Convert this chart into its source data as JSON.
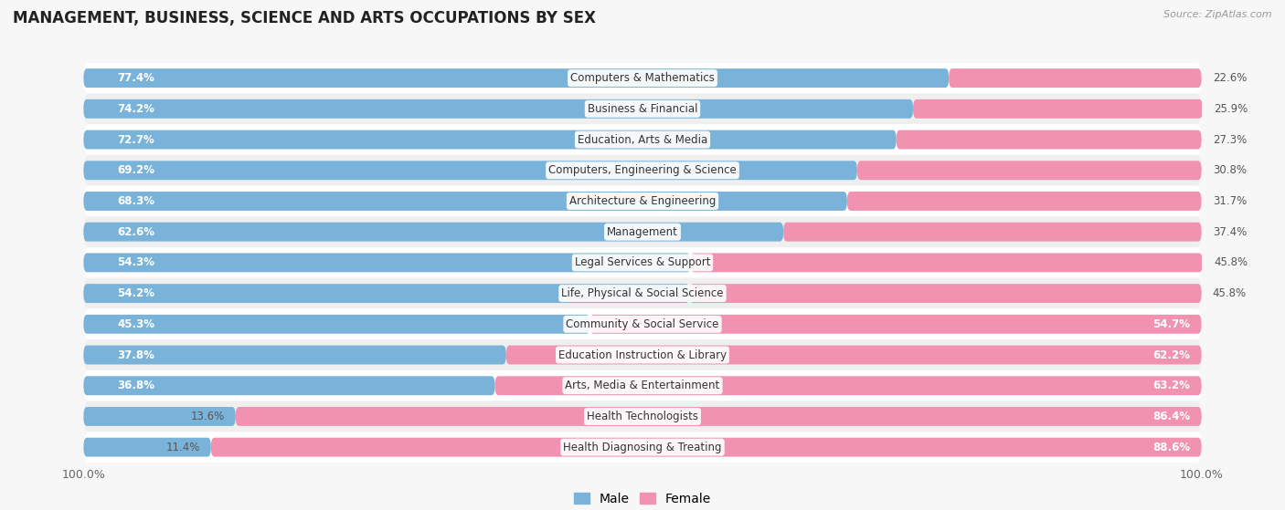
{
  "title": "MANAGEMENT, BUSINESS, SCIENCE AND ARTS OCCUPATIONS BY SEX",
  "source": "Source: ZipAtlas.com",
  "categories": [
    "Computers & Mathematics",
    "Business & Financial",
    "Education, Arts & Media",
    "Computers, Engineering & Science",
    "Architecture & Engineering",
    "Management",
    "Legal Services & Support",
    "Life, Physical & Social Science",
    "Community & Social Service",
    "Education Instruction & Library",
    "Arts, Media & Entertainment",
    "Health Technologists",
    "Health Diagnosing & Treating"
  ],
  "male_pct": [
    77.4,
    74.2,
    72.7,
    69.2,
    68.3,
    62.6,
    54.3,
    54.2,
    45.3,
    37.8,
    36.8,
    13.6,
    11.4
  ],
  "female_pct": [
    22.6,
    25.9,
    27.3,
    30.8,
    31.7,
    37.4,
    45.8,
    45.8,
    54.7,
    62.2,
    63.2,
    86.4,
    88.6
  ],
  "male_color": "#7ab3d9",
  "female_color": "#f092b0",
  "bg_color": "#f7f7f7",
  "row_light": "#ffffff",
  "row_dark": "#efefef",
  "title_fontsize": 12,
  "label_fontsize": 8.5,
  "tick_fontsize": 9,
  "legend_fontsize": 10,
  "bar_height": 0.62
}
